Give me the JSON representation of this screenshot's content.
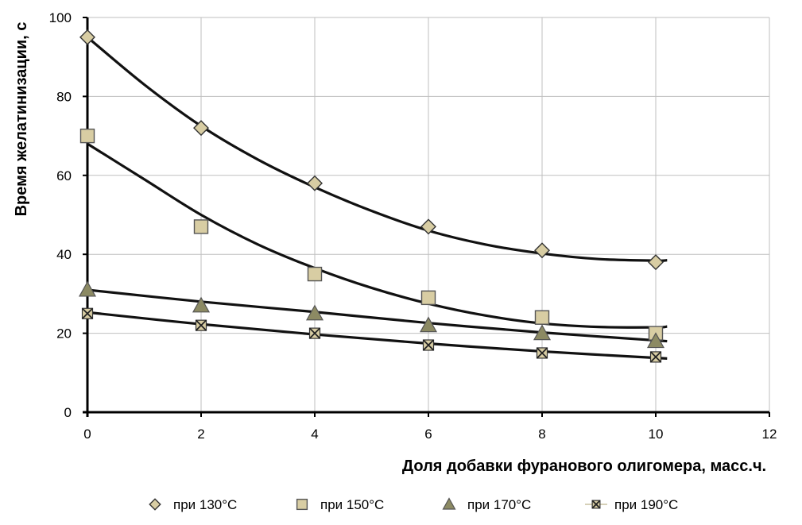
{
  "chart_data": {
    "type": "scatter",
    "xlabel": "Доля добавки фуранового олигомера, масс.ч.",
    "ylabel": "Время желатинизации, с",
    "xlim": [
      0,
      12
    ],
    "ylim": [
      0,
      100
    ],
    "x_ticks": [
      0,
      2,
      4,
      6,
      8,
      10,
      12
    ],
    "y_ticks": [
      0,
      20,
      40,
      60,
      80,
      100
    ],
    "grid": true,
    "legend_position": "bottom",
    "x": [
      0,
      2,
      4,
      6,
      8,
      10
    ],
    "series": [
      {
        "name": "при 130°C",
        "marker": "diamond",
        "values": [
          95,
          72,
          58,
          47,
          41,
          38
        ],
        "trend": [
          [
            0,
            95
          ],
          [
            1,
            83
          ],
          [
            2,
            72.5
          ],
          [
            3,
            64
          ],
          [
            4,
            57
          ],
          [
            5,
            51
          ],
          [
            6,
            46
          ],
          [
            7,
            42.5
          ],
          [
            8,
            40.2
          ],
          [
            9,
            38.8
          ],
          [
            10,
            38.4
          ],
          [
            10.2,
            38.5
          ]
        ]
      },
      {
        "name": "при 150°C",
        "marker": "square",
        "values": [
          70,
          47,
          35,
          29,
          24,
          20
        ],
        "trend": [
          [
            0,
            68
          ],
          [
            1,
            59
          ],
          [
            2,
            50
          ],
          [
            3,
            42.5
          ],
          [
            4,
            36.5
          ],
          [
            5,
            31.5
          ],
          [
            6,
            27.5
          ],
          [
            7,
            24.5
          ],
          [
            8,
            22.5
          ],
          [
            9,
            21.6
          ],
          [
            10,
            21.5
          ],
          [
            10.2,
            21.7
          ]
        ]
      },
      {
        "name": "при 170°C",
        "marker": "triangle",
        "values": [
          31,
          27,
          25,
          22,
          20,
          18
        ],
        "trend": [
          [
            0,
            31
          ],
          [
            2,
            28
          ],
          [
            4,
            25.4
          ],
          [
            6,
            22.6
          ],
          [
            8,
            20.2
          ],
          [
            10.2,
            18
          ]
        ]
      },
      {
        "name": "при 190°C",
        "marker": "boxx",
        "values": [
          25,
          22,
          20,
          17,
          15,
          14
        ],
        "trend": [
          [
            0,
            25.3
          ],
          [
            2,
            22.3
          ],
          [
            4,
            19.7
          ],
          [
            6,
            17.4
          ],
          [
            8,
            15.4
          ],
          [
            10.2,
            13.6
          ]
        ]
      }
    ],
    "colors": {
      "marker_fill": "#D8CDA3",
      "triangle_fill": "#8C8A63",
      "boxx_fill": "#D8CDA3",
      "marker_stroke": "#555555",
      "trendline": "#111111",
      "grid": "#BFBFBF"
    }
  }
}
